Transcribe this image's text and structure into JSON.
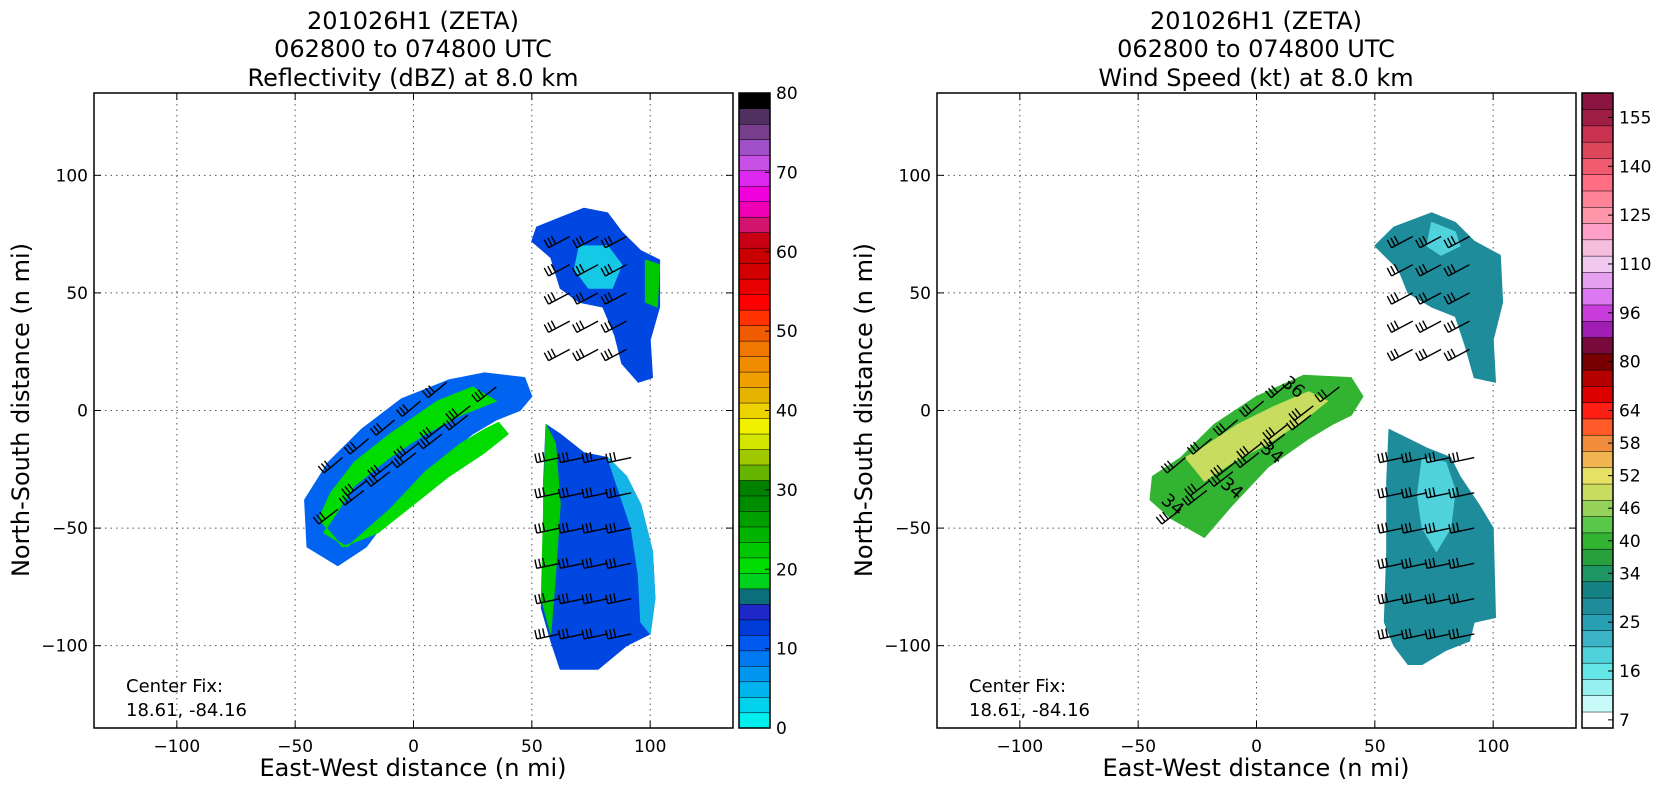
{
  "figure": {
    "title_line1": "201026H1 (ZETA)",
    "title_line2": "062800 to 074800 UTC"
  },
  "chart_data": [
    {
      "type": "heatmap",
      "title": "201026H1 (ZETA)",
      "subtitle": "062800 to 074800 UTC",
      "field": "Reflectivity (dBZ) at 8.0 km",
      "xlabel": "East-West distance (n mi)",
      "ylabel": "North-South distance (n mi)",
      "xlim": [
        -135,
        135
      ],
      "ylim": [
        -135,
        135
      ],
      "xticks": [
        "−100",
        "−50",
        "0",
        "50",
        "100"
      ],
      "yticks": [
        "−100",
        "−50",
        "0",
        "50",
        "100"
      ],
      "xtick_values": [
        -100,
        -50,
        0,
        50,
        100
      ],
      "ytick_values": [
        -100,
        -50,
        0,
        50,
        100
      ],
      "grid": true,
      "annotation": [
        "Center Fix:",
        "18.61, -84.16"
      ],
      "colorbar": {
        "min": 0,
        "max": 80,
        "tick_labels": [
          "0",
          "10",
          "20",
          "30",
          "40",
          "50",
          "60",
          "70",
          "80"
        ],
        "tick_values": [
          0,
          10,
          20,
          30,
          40,
          50,
          60,
          70,
          80
        ],
        "colors": [
          "#00eeee",
          "#00d2ee",
          "#00b4ee",
          "#0096f0",
          "#0078f0",
          "#005af0",
          "#003cd8",
          "#1e28c8",
          "#0b6e7a",
          "#00d21e",
          "#00dc00",
          "#00c800",
          "#00b400",
          "#00a000",
          "#008c00",
          "#008200",
          "#64b400",
          "#a0c800",
          "#d2e600",
          "#f0f000",
          "#eed200",
          "#e6b400",
          "#f0a000",
          "#f08c00",
          "#f07800",
          "#f05a00",
          "#ff3200",
          "#ff0000",
          "#e60000",
          "#d20000",
          "#c80000",
          "#c80014",
          "#d2146e",
          "#f000b4",
          "#f000dc",
          "#dc28f0",
          "#c850e6",
          "#a050c8",
          "#78408c",
          "#503060",
          "#000000"
        ]
      },
      "regions": [
        {
          "name": "northeast-band",
          "polygon": [
            [
              72,
              86
            ],
            [
              82,
              84
            ],
            [
              88,
              76
            ],
            [
              96,
              68
            ],
            [
              104,
              64
            ],
            [
              104,
              44
            ],
            [
              100,
              30
            ],
            [
              101,
              14
            ],
            [
              95,
              12
            ],
            [
              88,
              20
            ],
            [
              85,
              32
            ],
            [
              80,
              44
            ],
            [
              70,
              46
            ],
            [
              62,
              52
            ],
            [
              58,
              65
            ],
            [
              50,
              72
            ],
            [
              52,
              78
            ],
            [
              62,
              82
            ]
          ],
          "fill": "#0046e0"
        },
        {
          "name": "northeast-core",
          "polygon": [
            [
              70,
              70
            ],
            [
              82,
              70
            ],
            [
              88,
              62
            ],
            [
              84,
              52
            ],
            [
              74,
              52
            ],
            [
              68,
              60
            ]
          ],
          "fill": "#14c8e6"
        },
        {
          "name": "northeast-green",
          "polygon": [
            [
              98,
              64
            ],
            [
              104,
              62
            ],
            [
              103,
              44
            ],
            [
              98,
              46
            ]
          ],
          "fill": "#00c800"
        },
        {
          "name": "west-band",
          "polygon": [
            [
              -45,
              -58
            ],
            [
              -32,
              -66
            ],
            [
              -20,
              -58
            ],
            [
              -5,
              -38
            ],
            [
              10,
              -22
            ],
            [
              25,
              -10
            ],
            [
              35,
              -4
            ],
            [
              45,
              0
            ],
            [
              50,
              6
            ],
            [
              47,
              14
            ],
            [
              30,
              16
            ],
            [
              15,
              13
            ],
            [
              -5,
              5
            ],
            [
              -22,
              -8
            ],
            [
              -36,
              -22
            ],
            [
              -46,
              -38
            ]
          ],
          "fill": "#0064f0"
        },
        {
          "name": "west-band-core",
          "polygon": [
            [
              -38,
              -52
            ],
            [
              -28,
              -58
            ],
            [
              -10,
              -42
            ],
            [
              5,
              -26
            ],
            [
              20,
              -14
            ],
            [
              30,
              -8
            ],
            [
              36,
              -5
            ],
            [
              40,
              -10
            ],
            [
              30,
              -18
            ],
            [
              15,
              -28
            ],
            [
              0,
              -40
            ],
            [
              -15,
              -52
            ],
            [
              -30,
              -58
            ],
            [
              -40,
              -46
            ],
            [
              -35,
              -35
            ],
            [
              -25,
              -22
            ],
            [
              -10,
              -10
            ],
            [
              10,
              4
            ],
            [
              25,
              10
            ],
            [
              35,
              4
            ],
            [
              20,
              -2
            ],
            [
              5,
              -10
            ],
            [
              -10,
              -20
            ],
            [
              -25,
              -32
            ]
          ],
          "fill": "#00dc00"
        },
        {
          "name": "south-band",
          "polygon": [
            [
              56,
              -6
            ],
            [
              62,
              -10
            ],
            [
              72,
              -18
            ],
            [
              82,
              -20
            ],
            [
              90,
              -28
            ],
            [
              96,
              -40
            ],
            [
              101,
              -60
            ],
            [
              102,
              -80
            ],
            [
              100,
              -95
            ],
            [
              90,
              -100
            ],
            [
              78,
              -110
            ],
            [
              62,
              -110
            ],
            [
              58,
              -98
            ],
            [
              54,
              -84
            ],
            [
              55,
              -60
            ],
            [
              55,
              -30
            ]
          ],
          "fill": "#0046e0"
        },
        {
          "name": "south-band-green",
          "polygon": [
            [
              56,
              -6
            ],
            [
              60,
              -14
            ],
            [
              62,
              -40
            ],
            [
              60,
              -70
            ],
            [
              58,
              -95
            ],
            [
              54,
              -80
            ],
            [
              55,
              -40
            ]
          ],
          "fill": "#00c800"
        },
        {
          "name": "south-band-edge",
          "polygon": [
            [
              82,
              -20
            ],
            [
              90,
              -28
            ],
            [
              96,
              -40
            ],
            [
              101,
              -60
            ],
            [
              102,
              -80
            ],
            [
              100,
              -95
            ],
            [
              96,
              -90
            ],
            [
              95,
              -70
            ],
            [
              92,
              -50
            ],
            [
              86,
              -32
            ]
          ],
          "fill": "#14b4e6"
        }
      ]
    },
    {
      "type": "heatmap",
      "title": "201026H1 (ZETA)",
      "subtitle": "062800 to 074800 UTC",
      "field": "Wind Speed (kt) at 8.0 km",
      "xlabel": "East-West distance (n mi)",
      "ylabel": "North-South distance (n mi)",
      "xlim": [
        -135,
        135
      ],
      "ylim": [
        -135,
        135
      ],
      "xticks": [
        "−100",
        "−50",
        "0",
        "50",
        "100"
      ],
      "yticks": [
        "−100",
        "−50",
        "0",
        "50",
        "100"
      ],
      "xtick_values": [
        -100,
        -50,
        0,
        50,
        100
      ],
      "ytick_values": [
        -100,
        -50,
        0,
        50,
        100
      ],
      "grid": true,
      "annotation": [
        "Center Fix:",
        "18.61, -84.16"
      ],
      "contour_labels": [
        {
          "text": "34",
          "x": -37,
          "y": -42
        },
        {
          "text": "34",
          "x": -12,
          "y": -35
        },
        {
          "text": "34",
          "x": 5,
          "y": -20
        },
        {
          "text": "36",
          "x": 14,
          "y": 8
        }
      ],
      "colorbar": {
        "tick_labels": [
          "7",
          "16",
          "25",
          "34",
          "40",
          "46",
          "52",
          "58",
          "64",
          "80",
          "96",
          "110",
          "125",
          "140",
          "155"
        ],
        "label_bin_indices": [
          0,
          3,
          6,
          9,
          11,
          13,
          15,
          17,
          19,
          22,
          25,
          28,
          31,
          34,
          37
        ],
        "colors": [
          "#ffffff",
          "#c8fafa",
          "#96f0f0",
          "#64e6e6",
          "#50d2dc",
          "#3cb4c8",
          "#28a0b4",
          "#1e8c9b",
          "#148282",
          "#1e9664",
          "#28a03c",
          "#32b432",
          "#5ac84b",
          "#96d25a",
          "#c8dc5f",
          "#e6e164",
          "#f0b450",
          "#f08c3c",
          "#ff5a28",
          "#ff1e14",
          "#dc0000",
          "#b40000",
          "#780000",
          "#780a3c",
          "#a01eb4",
          "#c83cdc",
          "#dc78f0",
          "#e6a0f0",
          "#f0c8f0",
          "#f5bedc",
          "#ffa0c8",
          "#ff96aa",
          "#ff8296",
          "#ff6e82",
          "#f05a6e",
          "#dc465a",
          "#c83250",
          "#a01e46",
          "#8c1440"
        ]
      },
      "regions": [
        {
          "name": "northeast-band",
          "polygon": [
            [
              74,
              84
            ],
            [
              84,
              80
            ],
            [
              92,
              72
            ],
            [
              103,
              66
            ],
            [
              104,
              46
            ],
            [
              100,
              30
            ],
            [
              101,
              12
            ],
            [
              92,
              14
            ],
            [
              88,
              28
            ],
            [
              84,
              40
            ],
            [
              74,
              44
            ],
            [
              64,
              50
            ],
            [
              60,
              60
            ],
            [
              50,
              70
            ],
            [
              58,
              78
            ]
          ],
          "fill": "#1e8c9b"
        },
        {
          "name": "northeast-light",
          "polygon": [
            [
              74,
              80
            ],
            [
              84,
              76
            ],
            [
              86,
              70
            ],
            [
              78,
              66
            ],
            [
              72,
              70
            ]
          ],
          "fill": "#50d2dc"
        },
        {
          "name": "west-band",
          "polygon": [
            [
              -45,
              -38
            ],
            [
              -36,
              -46
            ],
            [
              -22,
              -54
            ],
            [
              -10,
              -40
            ],
            [
              5,
              -24
            ],
            [
              22,
              -12
            ],
            [
              32,
              -6
            ],
            [
              40,
              -2
            ],
            [
              45,
              6
            ],
            [
              40,
              14
            ],
            [
              20,
              15
            ],
            [
              0,
              6
            ],
            [
              -18,
              -6
            ],
            [
              -32,
              -20
            ],
            [
              -44,
              -28
            ]
          ],
          "fill": "#32b432"
        },
        {
          "name": "west-band-yellow",
          "polygon": [
            [
              -22,
              -30
            ],
            [
              -10,
              -22
            ],
            [
              5,
              -14
            ],
            [
              20,
              -4
            ],
            [
              30,
              4
            ],
            [
              22,
              8
            ],
            [
              8,
              2
            ],
            [
              -8,
              -6
            ],
            [
              -20,
              -14
            ],
            [
              -30,
              -20
            ]
          ],
          "fill": "#c8dc5f"
        },
        {
          "name": "south-band",
          "polygon": [
            [
              56,
              -8
            ],
            [
              64,
              -12
            ],
            [
              72,
              -16
            ],
            [
              82,
              -20
            ],
            [
              86,
              -28
            ],
            [
              94,
              -40
            ],
            [
              100,
              -50
            ],
            [
              101,
              -88
            ],
            [
              92,
              -90
            ],
            [
              90,
              -98
            ],
            [
              80,
              -102
            ],
            [
              70,
              -108
            ],
            [
              64,
              -108
            ],
            [
              58,
              -100
            ],
            [
              54,
              -90
            ],
            [
              55,
              -60
            ],
            [
              55,
              -30
            ]
          ],
          "fill": "#1e8c9b"
        },
        {
          "name": "south-band-light",
          "polygon": [
            [
              70,
              -20
            ],
            [
              80,
              -22
            ],
            [
              84,
              -34
            ],
            [
              82,
              -50
            ],
            [
              76,
              -60
            ],
            [
              70,
              -50
            ],
            [
              68,
              -36
            ]
          ],
          "fill": "#50d2dc"
        }
      ]
    }
  ]
}
